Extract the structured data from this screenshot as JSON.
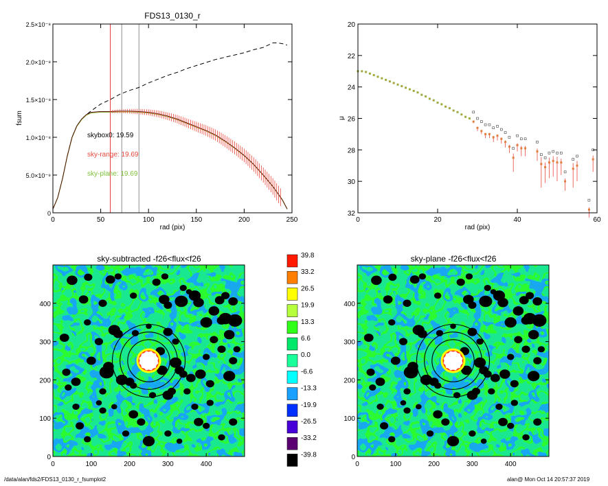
{
  "footer": {
    "path": "/data/alan/fds2/FDS13_0130_r_fsumplot2",
    "user_time": "alan@  Mon Oct 14 20:57:37 2019"
  },
  "colors": {
    "profile_black": "#000000",
    "profile_red": "#e8463c",
    "profile_green": "#7fbf3a",
    "vline_red": "#e63a3a",
    "vline_gray": "#909090",
    "mask": "#000000",
    "ring": "#000000"
  },
  "chart_data": [
    {
      "type": "line",
      "title": "FDS13_0130_r",
      "xlabel": "rad (pix)",
      "ylabel": "fsum",
      "xlim": [
        0,
        250
      ],
      "ylim": [
        0,
        2.5e-08
      ],
      "xticks": [
        "0",
        "50",
        "100",
        "150",
        "200",
        "250"
      ],
      "yticks": [
        "0",
        "5.0×10⁻⁹",
        "1.0×10⁻⁸",
        "1.5×10⁻⁸",
        "2.0×10⁻⁸",
        "2.5×10⁻⁸"
      ],
      "vlines": [
        60,
        72,
        90
      ],
      "annotations": [
        "skybox0: 19.59",
        "sky-range: 19.69",
        "sky-plane: 19.69"
      ],
      "series": [
        {
          "style": "dashed",
          "x": [
            0,
            5,
            10,
            15,
            20,
            25,
            30,
            35,
            40,
            50,
            60,
            70,
            80,
            90,
            100,
            110,
            120,
            130,
            140,
            150,
            160,
            170,
            180,
            190,
            200,
            210,
            220,
            230,
            235,
            240,
            245
          ],
          "values": [
            5e-10,
            2e-09,
            4.5e-09,
            7.5e-09,
            1e-08,
            1.15e-08,
            1.24e-08,
            1.3e-08,
            1.35e-08,
            1.44e-08,
            1.5e-08,
            1.57e-08,
            1.62e-08,
            1.66e-08,
            1.72e-08,
            1.77e-08,
            1.82e-08,
            1.86e-08,
            1.91e-08,
            1.95e-08,
            1.99e-08,
            2.03e-08,
            2.06e-08,
            2.09e-08,
            2.12e-08,
            2.16e-08,
            2.19e-08,
            2.25e-08,
            2.25e-08,
            2.24e-08,
            2.22e-08
          ]
        },
        {
          "style": "solid",
          "x": [
            0,
            5,
            10,
            15,
            20,
            25,
            30,
            35,
            40,
            50,
            60,
            70,
            80,
            90,
            100,
            110,
            120,
            130,
            140,
            150,
            160,
            170,
            180,
            190,
            200,
            210,
            220,
            230,
            240,
            245
          ],
          "values": [
            5e-10,
            2e-09,
            4.5e-09,
            7.5e-09,
            1e-08,
            1.15e-08,
            1.24e-08,
            1.3e-08,
            1.33e-08,
            1.34e-08,
            1.34e-08,
            1.345e-08,
            1.345e-08,
            1.34e-08,
            1.33e-08,
            1.31e-08,
            1.28e-08,
            1.24e-08,
            1.19e-08,
            1.14e-08,
            1.09e-08,
            1.03e-08,
            9.5e-09,
            8.6e-09,
            7.6e-09,
            6.4e-09,
            5e-09,
            3.5e-09,
            1.7e-09,
            5e-10
          ]
        },
        {
          "style": "errorbars",
          "x": [
            60,
            70,
            80,
            90,
            100,
            110,
            120,
            130,
            140,
            150,
            160,
            170,
            180,
            190,
            200,
            210,
            220,
            230,
            240
          ],
          "values": [
            1.34e-08,
            1.345e-08,
            1.345e-08,
            1.34e-08,
            1.33e-08,
            1.31e-08,
            1.28e-08,
            1.24e-08,
            1.19e-08,
            1.14e-08,
            1.09e-08,
            1.03e-08,
            9.5e-09,
            8.6e-09,
            7.6e-09,
            6.4e-09,
            5e-09,
            3.5e-09,
            1.7e-09
          ],
          "errors": [
            2e-10,
            2.5e-10,
            3e-10,
            3.5e-10,
            4e-10,
            4.5e-10,
            5e-10,
            5.5e-10,
            6e-10,
            6.5e-10,
            7e-10,
            7.5e-10,
            8e-10,
            8.5e-10,
            9e-10,
            9.5e-10,
            1e-09,
            1.1e-09,
            1.2e-09
          ]
        }
      ]
    },
    {
      "type": "scatter",
      "xlabel": "rad (pix)",
      "ylabel": "μ",
      "xlim": [
        0,
        60
      ],
      "ylim": [
        32,
        20
      ],
      "xticks": [
        "0",
        "20",
        "40",
        "60"
      ],
      "yticks": [
        "20",
        "22",
        "24",
        "26",
        "28",
        "30",
        "32"
      ],
      "series": [
        {
          "x": [
            0,
            1,
            2,
            3,
            4,
            5,
            6,
            7,
            8,
            9,
            10,
            11,
            12,
            13,
            14,
            15,
            16,
            17,
            18,
            19,
            20,
            21,
            22,
            23,
            24,
            25,
            26,
            27,
            28
          ],
          "values": [
            23.0,
            23.0,
            23.05,
            23.15,
            23.25,
            23.35,
            23.45,
            23.55,
            23.65,
            23.75,
            23.85,
            23.95,
            24.05,
            24.15,
            24.25,
            24.35,
            24.5,
            24.6,
            24.75,
            24.85,
            25.0,
            25.1,
            25.25,
            25.35,
            25.5,
            25.6,
            25.75,
            25.9,
            26.0
          ]
        },
        {
          "x": [
            29,
            30,
            31,
            32,
            33,
            34,
            35,
            36,
            37,
            38,
            39,
            40,
            41,
            42,
            45,
            46,
            47,
            48,
            49,
            50,
            51,
            52,
            54,
            55,
            58,
            59
          ],
          "values": [
            26.2,
            26.6,
            26.8,
            27.0,
            27.0,
            27.2,
            27.1,
            27.3,
            27.5,
            27.8,
            28.5,
            27.7,
            27.9,
            27.9,
            28.1,
            28.9,
            29.1,
            28.8,
            28.7,
            28.8,
            28.8,
            30.0,
            29.2,
            29.0,
            31.8,
            28.6
          ],
          "errors": [
            0.1,
            0.2,
            0.2,
            0.25,
            0.25,
            0.3,
            0.3,
            0.3,
            0.35,
            0.4,
            0.9,
            0.4,
            0.5,
            0.5,
            0.6,
            1.5,
            1.0,
            1.0,
            1.0,
            1.2,
            0.8,
            0.6,
            1.2,
            1.0,
            0.5,
            0.8
          ]
        }
      ]
    },
    {
      "type": "heatmap",
      "title": "sky-subtracted -f26<flux<f26",
      "xlim": [
        0,
        500
      ],
      "ylim": [
        0,
        500
      ],
      "xticks": [
        "0",
        "100",
        "200",
        "300",
        "400"
      ],
      "yticks": [
        "0",
        "100",
        "200",
        "300",
        "400"
      ],
      "center": [
        250,
        250
      ],
      "ring_radii": [
        55,
        75,
        95
      ]
    },
    {
      "type": "heatmap",
      "title": "sky-plane -f26<flux<f26",
      "xlim": [
        0,
        500
      ],
      "ylim": [
        0,
        500
      ],
      "xticks": [
        "0",
        "100",
        "200",
        "300",
        "400"
      ],
      "yticks": [
        "0",
        "100",
        "200",
        "300",
        "400"
      ],
      "center": [
        250,
        250
      ],
      "ring_radii": [
        55,
        75,
        95
      ]
    }
  ],
  "colorbar": {
    "labels": [
      "39.8",
      "33.2",
      "26.5",
      "19.9",
      "13.3",
      "6.6",
      "0.0",
      "-6.6",
      "-13.3",
      "-19.9",
      "-26.5",
      "-33.2",
      "-39.8"
    ],
    "colors": [
      "#ff1a00",
      "#ff7f00",
      "#ffff00",
      "#b6ff3c",
      "#30ff1a",
      "#00e86a",
      "#1aff9a",
      "#00ffff",
      "#1aa0ff",
      "#0030ff",
      "#4800d8",
      "#5a0070",
      "#000000"
    ]
  }
}
